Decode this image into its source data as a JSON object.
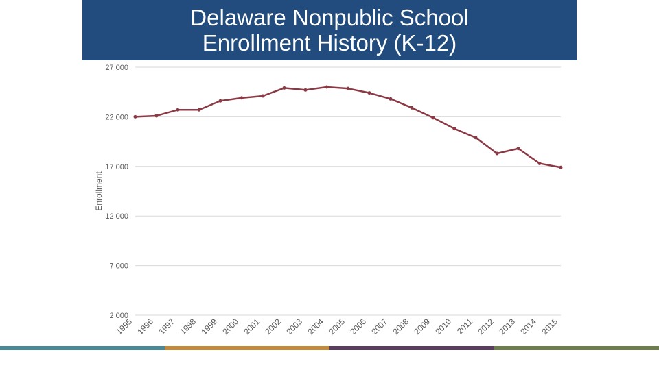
{
  "title": {
    "line1": "Delaware Nonpublic School",
    "line2": "Enrollment History (K-12)"
  },
  "colors": {
    "title_background": "#224c7d",
    "line": "#8b3a45",
    "footer": [
      "#4a8a96",
      "#c18a3c",
      "#5a3e5e",
      "#6e7d4c"
    ]
  },
  "chart_data": {
    "type": "line",
    "ylabel": "Enrollment",
    "xlabel": "",
    "ylim": [
      2000,
      27000
    ],
    "yticks": [
      2000,
      7000,
      12000,
      17000,
      22000,
      27000
    ],
    "ytick_labels": [
      "2 000",
      "7 000",
      "12 000",
      "17 000",
      "22 000",
      "27 000"
    ],
    "grid": true,
    "legend": "none",
    "categories": [
      "1995",
      "1996",
      "1997",
      "1998",
      "1999",
      "2000",
      "2001",
      "2002",
      "2003",
      "2004",
      "2005",
      "2006",
      "2007",
      "2008",
      "2009",
      "2010",
      "2011",
      "2012",
      "2013",
      "2014",
      "2015"
    ],
    "series": [
      {
        "values": [
          22000,
          22100,
          22700,
          22700,
          23600,
          23900,
          24100,
          24900,
          24700,
          25000,
          24850,
          24400,
          23800,
          22900,
          21900,
          20800,
          19900,
          18300,
          18800,
          17300,
          16900
        ]
      }
    ]
  }
}
